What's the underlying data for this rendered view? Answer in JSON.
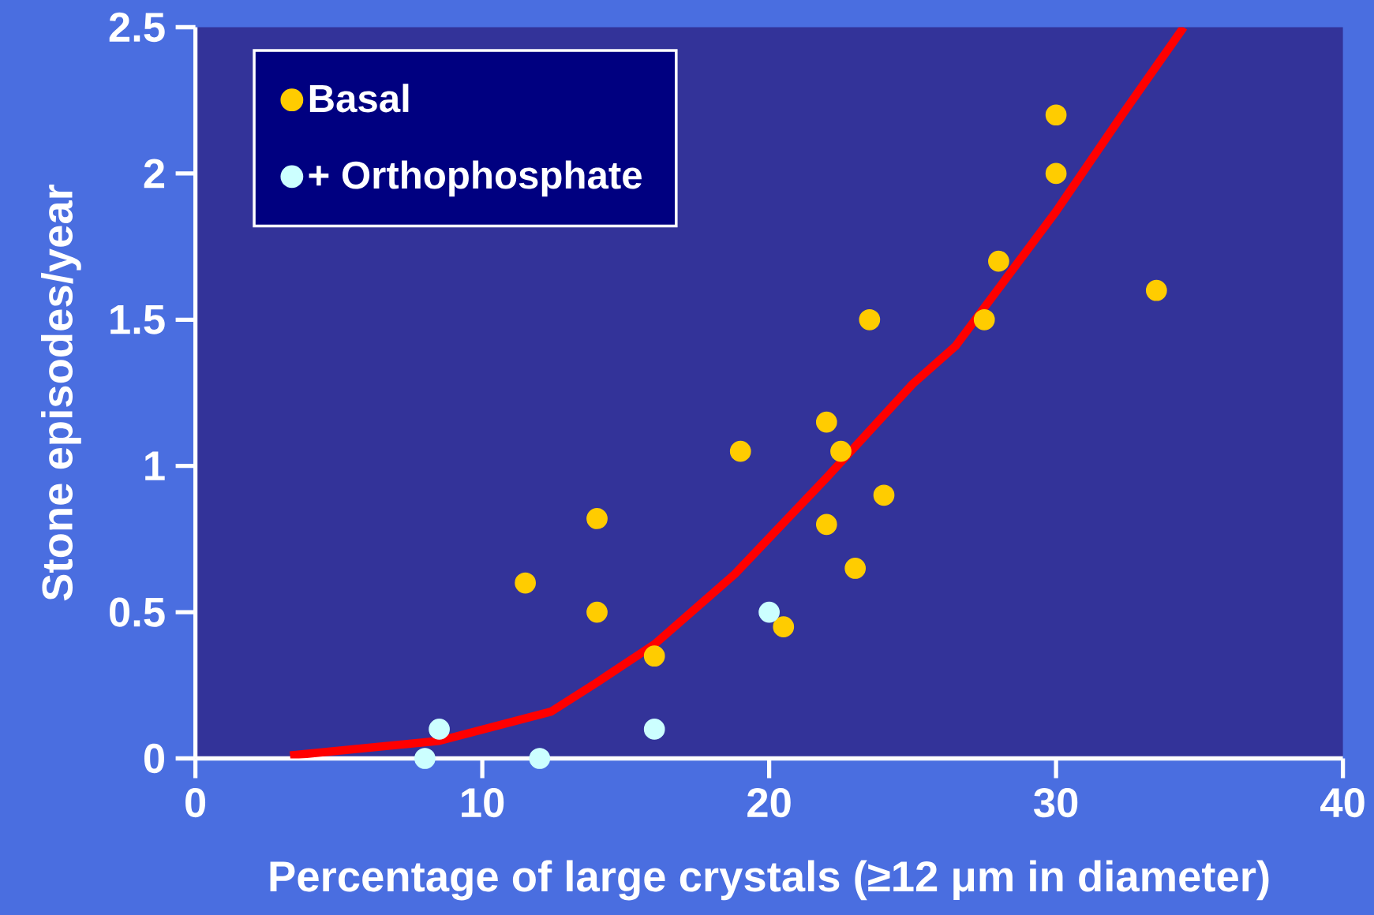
{
  "chart_data": {
    "type": "scatter",
    "xlabel": "Percentage of large crystals (≥12 μm in diameter)",
    "ylabel": "Stone episodes/year",
    "xlim": [
      0,
      40
    ],
    "xticks": [
      0,
      10,
      20,
      30,
      40
    ],
    "ylim": [
      0,
      2.5
    ],
    "yticks": [
      0,
      0.5,
      1,
      1.5,
      2,
      2.5
    ],
    "legend": "top left",
    "marker": "circle",
    "series": [
      {
        "name": "Basal",
        "color": "#ffcc00",
        "x": [
          11.5,
          14,
          14,
          16,
          19,
          20.5,
          22,
          22,
          22.5,
          23,
          23.5,
          24,
          27.5,
          28,
          30,
          30,
          33.5
        ],
        "values": [
          0.6,
          0.82,
          0.5,
          0.35,
          1.05,
          0.45,
          1.15,
          0.8,
          1.05,
          0.65,
          1.5,
          0.9,
          1.5,
          1.7,
          2.2,
          2.0,
          1.6
        ]
      },
      {
        "name": "+ Orthophosphate",
        "color": "#ccffff",
        "x": [
          8,
          8.5,
          12,
          16,
          20
        ],
        "values": [
          0,
          0.1,
          0,
          0.1,
          0.5
        ]
      },
      {
        "type": "line",
        "color": "#ff0000",
        "line_style": "solid",
        "marker": "none",
        "x": [
          3.3,
          8.5,
          12.4,
          14,
          16,
          18.8,
          22,
          25,
          26.5,
          30,
          32.3,
          34.45
        ],
        "values": [
          0.01,
          0.06,
          0.16,
          0.26,
          0.39,
          0.63,
          0.96,
          1.28,
          1.41,
          1.87,
          2.2,
          2.5
        ]
      }
    ]
  }
}
